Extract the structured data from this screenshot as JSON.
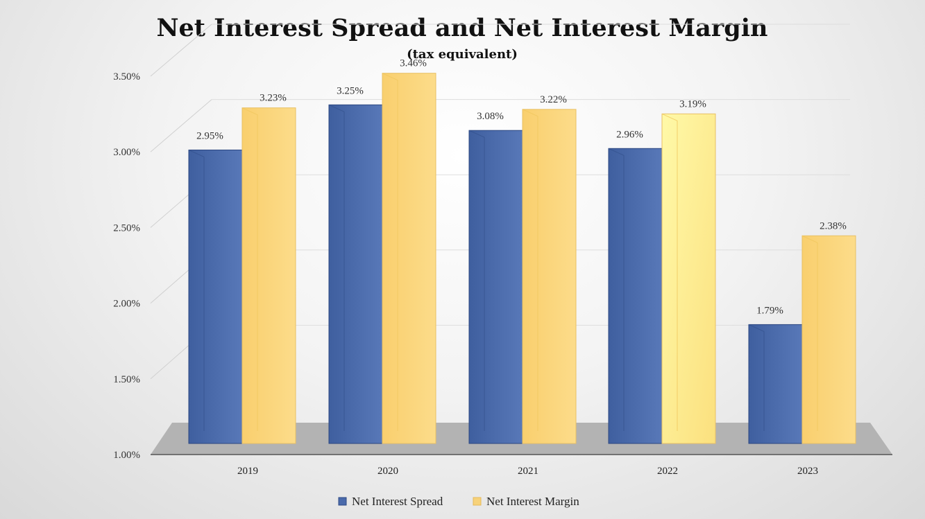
{
  "chart_data": {
    "type": "bar",
    "title": "Net Interest Spread and Net Interest Margin",
    "subtitle": "(tax equivalent)",
    "categories": [
      "2019",
      "2020",
      "2021",
      "2022",
      "2023"
    ],
    "series": [
      {
        "name": "Net Interest Spread",
        "values": [
          2.95,
          3.25,
          3.08,
          2.96,
          1.79
        ],
        "labels": [
          "2.95%",
          "3.25%",
          "3.08%",
          "2.96%",
          "1.79%"
        ],
        "color": "#4a6aab"
      },
      {
        "name": "Net Interest Margin",
        "values": [
          3.23,
          3.46,
          3.22,
          3.19,
          2.38
        ],
        "labels": [
          "3.23%",
          "3.46%",
          "3.22%",
          "3.19%",
          "2.38%"
        ],
        "color": "#f7d27a"
      }
    ],
    "yticks": [
      "1.00%",
      "1.50%",
      "2.00%",
      "2.50%",
      "3.00%",
      "3.50%"
    ],
    "ylim": [
      1.0,
      3.5
    ],
    "legend_position": "bottom",
    "grid": true,
    "style": "3d-bar"
  }
}
